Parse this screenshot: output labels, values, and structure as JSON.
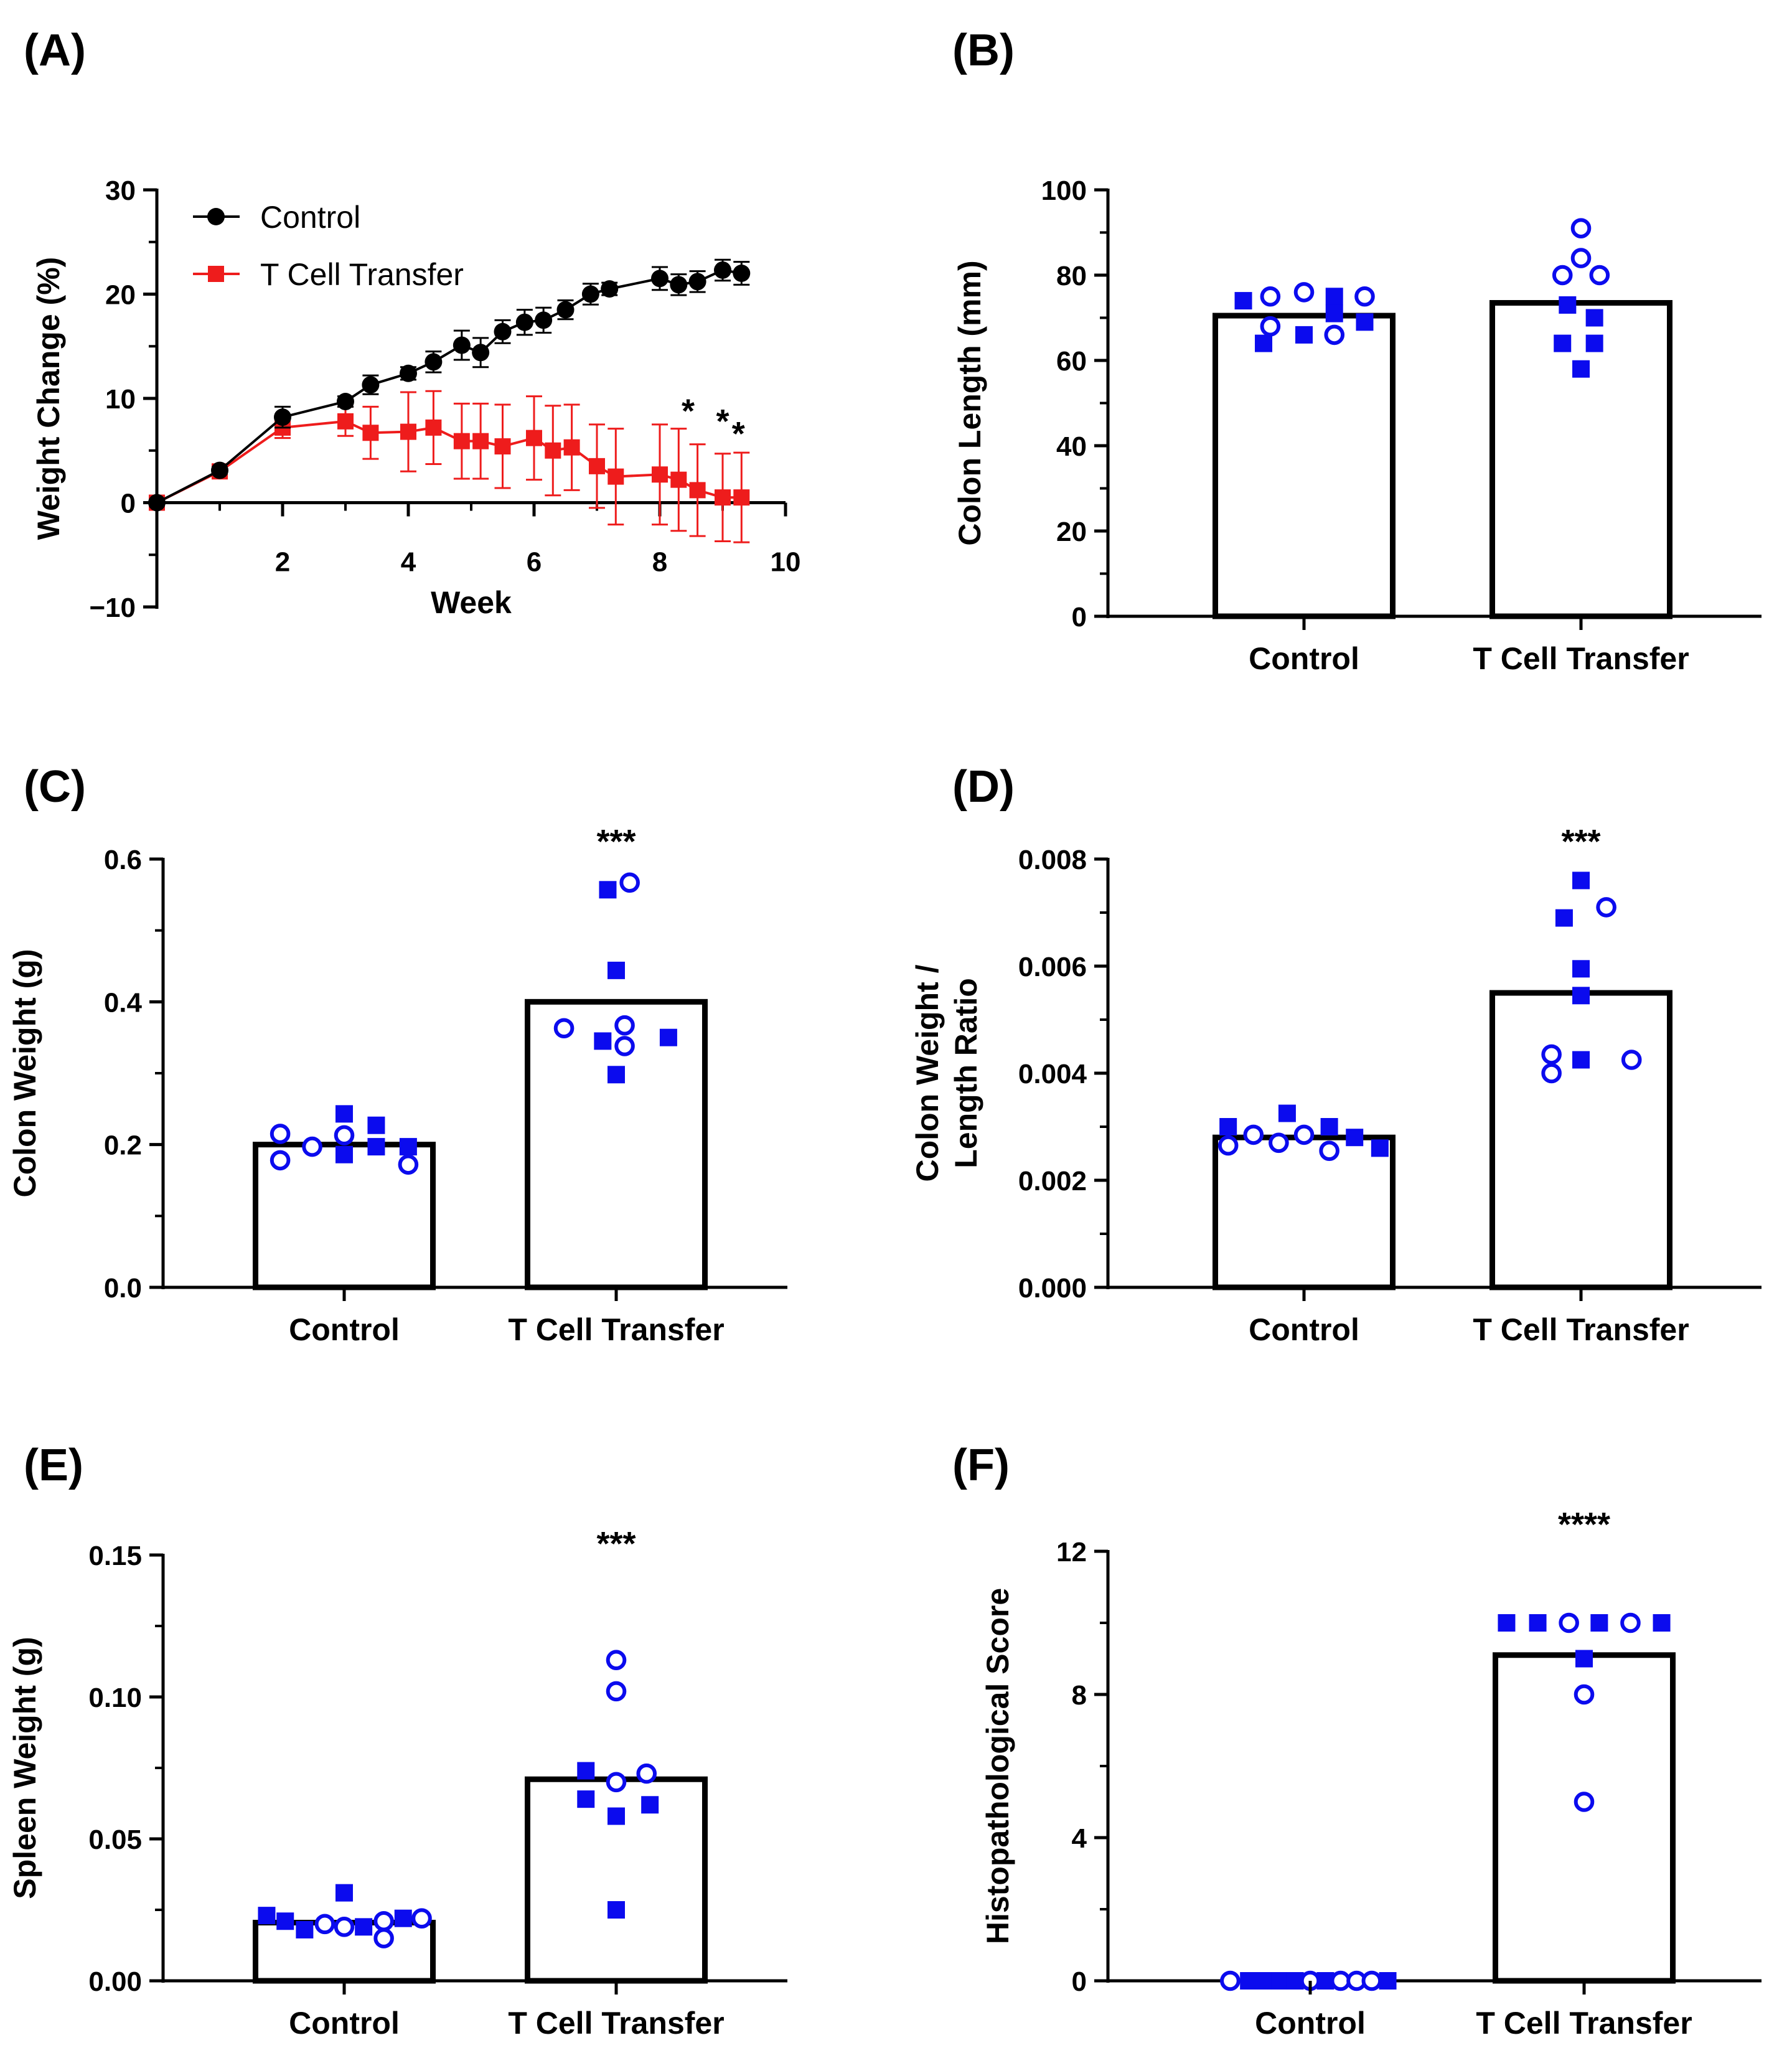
{
  "colors": {
    "control": "#000000",
    "tct": "#ee1c1c",
    "points": "#0b0bee",
    "axis": "#000000"
  },
  "chart_data": [
    {
      "panel": "(A)",
      "type": "line",
      "title": "",
      "xlabel": "Week",
      "ylabel": "Weight Change (%)",
      "xlim": [
        0,
        10
      ],
      "ylim": [
        -10,
        30
      ],
      "xticks": [
        2,
        4,
        6,
        8,
        10
      ],
      "yticks": [
        -10,
        0,
        10,
        20,
        30
      ],
      "xtick_labels": [
        "2",
        "4",
        "6",
        "8",
        "10"
      ],
      "ytick_labels": [
        "−10",
        "0",
        "10",
        "20",
        "30"
      ],
      "legend_position": "top-left",
      "series": [
        {
          "name": "Control",
          "x": [
            0,
            1,
            2,
            3,
            3.4,
            4,
            4.4,
            4.85,
            5.15,
            5.5,
            5.85,
            6.15,
            6.5,
            6.9,
            7.2,
            8,
            8.3,
            8.6,
            9,
            9.3
          ],
          "y": [
            0,
            3.1,
            8.2,
            9.7,
            11.3,
            12.4,
            13.5,
            15.1,
            14.4,
            16.4,
            17.3,
            17.5,
            18.5,
            20,
            20.5,
            21.5,
            20.9,
            21.2,
            22.3,
            22
          ],
          "err": [
            0,
            0.3,
            1,
            0.5,
            0.9,
            0.6,
            1,
            1.4,
            1.4,
            1.1,
            1.2,
            1.2,
            0.9,
            1,
            0.6,
            1.1,
            1,
            1,
            1,
            1.1
          ]
        },
        {
          "name": "T Cell Transfer",
          "x": [
            0,
            1,
            2,
            3,
            3.4,
            4,
            4.4,
            4.85,
            5.15,
            5.5,
            6,
            6.3,
            6.6,
            7,
            7.3,
            8,
            8.3,
            8.6,
            9,
            9.3
          ],
          "y": [
            0,
            3,
            7.2,
            7.8,
            6.7,
            6.8,
            7.2,
            5.9,
            5.9,
            5.4,
            6.2,
            5,
            5.3,
            3.5,
            2.5,
            2.7,
            2.2,
            1.2,
            0.5,
            0.5
          ],
          "err": [
            0,
            0.3,
            1,
            1.4,
            2.5,
            3.8,
            3.5,
            3.6,
            3.6,
            4,
            4,
            4.3,
            4.1,
            4,
            4.6,
            4.8,
            4.9,
            4.4,
            4.2,
            4.3
          ]
        }
      ],
      "annotations": [
        {
          "text": "*",
          "x": 8.45,
          "y": 9.5
        },
        {
          "text": "*",
          "x": 9.0,
          "y": 8.5
        },
        {
          "text": "*",
          "x": 9.25,
          "y": 7.3
        }
      ]
    },
    {
      "panel": "(B)",
      "type": "bar",
      "ylabel": "Colon Length (mm)",
      "ylim": [
        0,
        100
      ],
      "yticks": [
        0,
        20,
        40,
        60,
        80,
        100
      ],
      "ytick_labels": [
        "0",
        "20",
        "40",
        "60",
        "80",
        "100"
      ],
      "categories": [
        "Control",
        "T Cell Transfer"
      ],
      "values": [
        70.5,
        73.5
      ],
      "significance": [
        "",
        ""
      ],
      "points": [
        [
          {
            "dx": -0.72,
            "v": 74,
            "m": "s"
          },
          {
            "dx": -0.48,
            "v": 64,
            "m": "s"
          },
          {
            "dx": -0.4,
            "v": 68,
            "m": "o"
          },
          {
            "dx": -0.4,
            "v": 75,
            "m": "o"
          },
          {
            "dx": 0,
            "v": 66,
            "m": "s"
          },
          {
            "dx": 0,
            "v": 76,
            "m": "o"
          },
          {
            "dx": 0.36,
            "v": 75,
            "m": "s"
          },
          {
            "dx": 0.36,
            "v": 71,
            "m": "s"
          },
          {
            "dx": 0.36,
            "v": 66,
            "m": "o"
          },
          {
            "dx": 0.72,
            "v": 75,
            "m": "o"
          },
          {
            "dx": 0.72,
            "v": 69,
            "m": "s"
          }
        ],
        [
          {
            "dx": 0,
            "v": 91,
            "m": "o"
          },
          {
            "dx": 0,
            "v": 84,
            "m": "o"
          },
          {
            "dx": -0.22,
            "v": 80,
            "m": "o"
          },
          {
            "dx": 0.22,
            "v": 80,
            "m": "o"
          },
          {
            "dx": -0.16,
            "v": 73,
            "m": "s"
          },
          {
            "dx": 0.16,
            "v": 70,
            "m": "s"
          },
          {
            "dx": -0.22,
            "v": 64,
            "m": "s"
          },
          {
            "dx": 0.16,
            "v": 64,
            "m": "s"
          },
          {
            "dx": 0,
            "v": 58,
            "m": "s"
          }
        ]
      ]
    },
    {
      "panel": "(C)",
      "type": "bar",
      "ylabel": "Colon Weight  (g)",
      "ylim": [
        0,
        0.6
      ],
      "yticks": [
        0,
        0.2,
        0.4,
        0.6
      ],
      "ytick_labels": [
        "0.0",
        "0.2",
        "0.4",
        "0.6"
      ],
      "categories": [
        "Control",
        "T Cell Transfer"
      ],
      "values": [
        0.2,
        0.4
      ],
      "significance": [
        "",
        "***"
      ],
      "points": [
        [
          {
            "dx": -0.76,
            "v": 0.215,
            "m": "o"
          },
          {
            "dx": -0.76,
            "v": 0.178,
            "m": "o"
          },
          {
            "dx": -0.38,
            "v": 0.197,
            "m": "o"
          },
          {
            "dx": 0,
            "v": 0.243,
            "m": "s"
          },
          {
            "dx": 0,
            "v": 0.213,
            "m": "o"
          },
          {
            "dx": 0,
            "v": 0.186,
            "m": "s"
          },
          {
            "dx": 0.38,
            "v": 0.227,
            "m": "s"
          },
          {
            "dx": 0.38,
            "v": 0.197,
            "m": "s"
          },
          {
            "dx": 0.76,
            "v": 0.197,
            "m": "s"
          },
          {
            "dx": 0.76,
            "v": 0.172,
            "m": "o"
          }
        ],
        [
          {
            "dx": -0.1,
            "v": 0.557,
            "m": "s"
          },
          {
            "dx": 0.16,
            "v": 0.567,
            "m": "o"
          },
          {
            "dx": 0,
            "v": 0.444,
            "m": "s"
          },
          {
            "dx": -0.62,
            "v": 0.363,
            "m": "o"
          },
          {
            "dx": 0.1,
            "v": 0.367,
            "m": "o"
          },
          {
            "dx": -0.16,
            "v": 0.345,
            "m": "s"
          },
          {
            "dx": 0.1,
            "v": 0.338,
            "m": "o"
          },
          {
            "dx": 0.62,
            "v": 0.35,
            "m": "s"
          },
          {
            "dx": 0,
            "v": 0.298,
            "m": "s"
          }
        ]
      ]
    },
    {
      "panel": "(D)",
      "type": "bar",
      "ylabel": "Colon Weight / Length Ratio",
      "ylabel_lines": [
        "Colon Weight /",
        "Length Ratio"
      ],
      "ylim": [
        0,
        0.008
      ],
      "yticks": [
        0,
        0.002,
        0.004,
        0.006,
        0.008
      ],
      "ytick_labels": [
        "0.000",
        "0.002",
        "0.004",
        "0.006",
        "0.008"
      ],
      "categories": [
        "Control",
        "T Cell Transfer"
      ],
      "values": [
        0.0028,
        0.0055
      ],
      "significance": [
        "",
        "***"
      ],
      "points": [
        [
          {
            "dx": -0.9,
            "v": 0.003,
            "m": "s"
          },
          {
            "dx": -0.9,
            "v": 0.00265,
            "m": "o"
          },
          {
            "dx": -0.6,
            "v": 0.00285,
            "m": "o"
          },
          {
            "dx": -0.3,
            "v": 0.0027,
            "m": "o"
          },
          {
            "dx": -0.2,
            "v": 0.00325,
            "m": "s"
          },
          {
            "dx": 0,
            "v": 0.00285,
            "m": "o"
          },
          {
            "dx": 0.3,
            "v": 0.003,
            "m": "s"
          },
          {
            "dx": 0.3,
            "v": 0.00255,
            "m": "o"
          },
          {
            "dx": 0.6,
            "v": 0.0028,
            "m": "s"
          },
          {
            "dx": 0.9,
            "v": 0.0026,
            "m": "s"
          }
        ],
        [
          {
            "dx": 0,
            "v": 0.0076,
            "m": "s"
          },
          {
            "dx": 0.3,
            "v": 0.0071,
            "m": "o"
          },
          {
            "dx": -0.2,
            "v": 0.0069,
            "m": "s"
          },
          {
            "dx": 0,
            "v": 0.00595,
            "m": "s"
          },
          {
            "dx": 0,
            "v": 0.00545,
            "m": "s"
          },
          {
            "dx": -0.35,
            "v": 0.00435,
            "m": "o"
          },
          {
            "dx": 0,
            "v": 0.00425,
            "m": "s"
          },
          {
            "dx": 0.6,
            "v": 0.00425,
            "m": "o"
          },
          {
            "dx": -0.35,
            "v": 0.004,
            "m": "o"
          }
        ]
      ]
    },
    {
      "panel": "(E)",
      "type": "bar",
      "ylabel": "Spleen  Weight  (g)",
      "ylim": [
        0,
        0.15
      ],
      "yticks": [
        0,
        0.05,
        0.1,
        0.15
      ],
      "ytick_labels": [
        "0.00",
        "0.05",
        "0.10",
        "0.15"
      ],
      "categories": [
        "Control",
        "T Cell Transfer"
      ],
      "values": [
        0.0205,
        0.071
      ],
      "significance": [
        "",
        "***"
      ],
      "points": [
        [
          {
            "dx": -0.92,
            "v": 0.023,
            "m": "s"
          },
          {
            "dx": -0.7,
            "v": 0.021,
            "m": "s"
          },
          {
            "dx": -0.47,
            "v": 0.018,
            "m": "s"
          },
          {
            "dx": -0.23,
            "v": 0.02,
            "m": "o"
          },
          {
            "dx": 0,
            "v": 0.031,
            "m": "s"
          },
          {
            "dx": 0,
            "v": 0.019,
            "m": "o"
          },
          {
            "dx": 0.23,
            "v": 0.019,
            "m": "s"
          },
          {
            "dx": 0.47,
            "v": 0.021,
            "m": "o"
          },
          {
            "dx": 0.47,
            "v": 0.015,
            "m": "o"
          },
          {
            "dx": 0.7,
            "v": 0.022,
            "m": "s"
          },
          {
            "dx": 0.92,
            "v": 0.022,
            "m": "o"
          }
        ],
        [
          {
            "dx": 0,
            "v": 0.113,
            "m": "o"
          },
          {
            "dx": 0,
            "v": 0.102,
            "m": "o"
          },
          {
            "dx": -0.36,
            "v": 0.074,
            "m": "s"
          },
          {
            "dx": 0.36,
            "v": 0.073,
            "m": "o"
          },
          {
            "dx": 0,
            "v": 0.07,
            "m": "o"
          },
          {
            "dx": -0.36,
            "v": 0.064,
            "m": "s"
          },
          {
            "dx": 0.4,
            "v": 0.062,
            "m": "s"
          },
          {
            "dx": 0,
            "v": 0.058,
            "m": "s"
          },
          {
            "dx": 0,
            "v": 0.025,
            "m": "s"
          }
        ]
      ]
    },
    {
      "panel": "(F)",
      "type": "bar",
      "ylabel": "Histopathological Score",
      "ylim": [
        0,
        12
      ],
      "yticks": [
        0,
        4,
        8,
        12
      ],
      "ytick_labels": [
        "0",
        "4",
        "8",
        "12"
      ],
      "minor_yticks": [
        2,
        6,
        10
      ],
      "categories": [
        "Control",
        "T Cell Transfer"
      ],
      "values": [
        0,
        9.1
      ],
      "significance": [
        "",
        "****"
      ],
      "points": [
        [
          {
            "dx": -0.95,
            "v": 0,
            "m": "o"
          },
          {
            "dx": -0.73,
            "v": 0,
            "m": "s"
          },
          {
            "dx": -0.55,
            "v": 0,
            "m": "s"
          },
          {
            "dx": -0.36,
            "v": 0,
            "m": "s"
          },
          {
            "dx": -0.18,
            "v": 0,
            "m": "s"
          },
          {
            "dx": 0,
            "v": 0,
            "m": "o"
          },
          {
            "dx": 0.18,
            "v": 0,
            "m": "s"
          },
          {
            "dx": 0.36,
            "v": 0,
            "m": "o"
          },
          {
            "dx": 0.55,
            "v": 0,
            "m": "o"
          },
          {
            "dx": 0.73,
            "v": 0,
            "m": "o"
          },
          {
            "dx": 0.92,
            "v": 0,
            "m": "s"
          }
        ],
        [
          {
            "dx": -0.92,
            "v": 10,
            "m": "s"
          },
          {
            "dx": -0.55,
            "v": 10,
            "m": "s"
          },
          {
            "dx": -0.18,
            "v": 10,
            "m": "o"
          },
          {
            "dx": 0.18,
            "v": 10,
            "m": "s"
          },
          {
            "dx": 0.55,
            "v": 10,
            "m": "o"
          },
          {
            "dx": 0.92,
            "v": 10,
            "m": "s"
          },
          {
            "dx": 0,
            "v": 9,
            "m": "s"
          },
          {
            "dx": 0,
            "v": 8,
            "m": "o"
          },
          {
            "dx": 0,
            "v": 5,
            "m": "o"
          }
        ]
      ]
    }
  ]
}
